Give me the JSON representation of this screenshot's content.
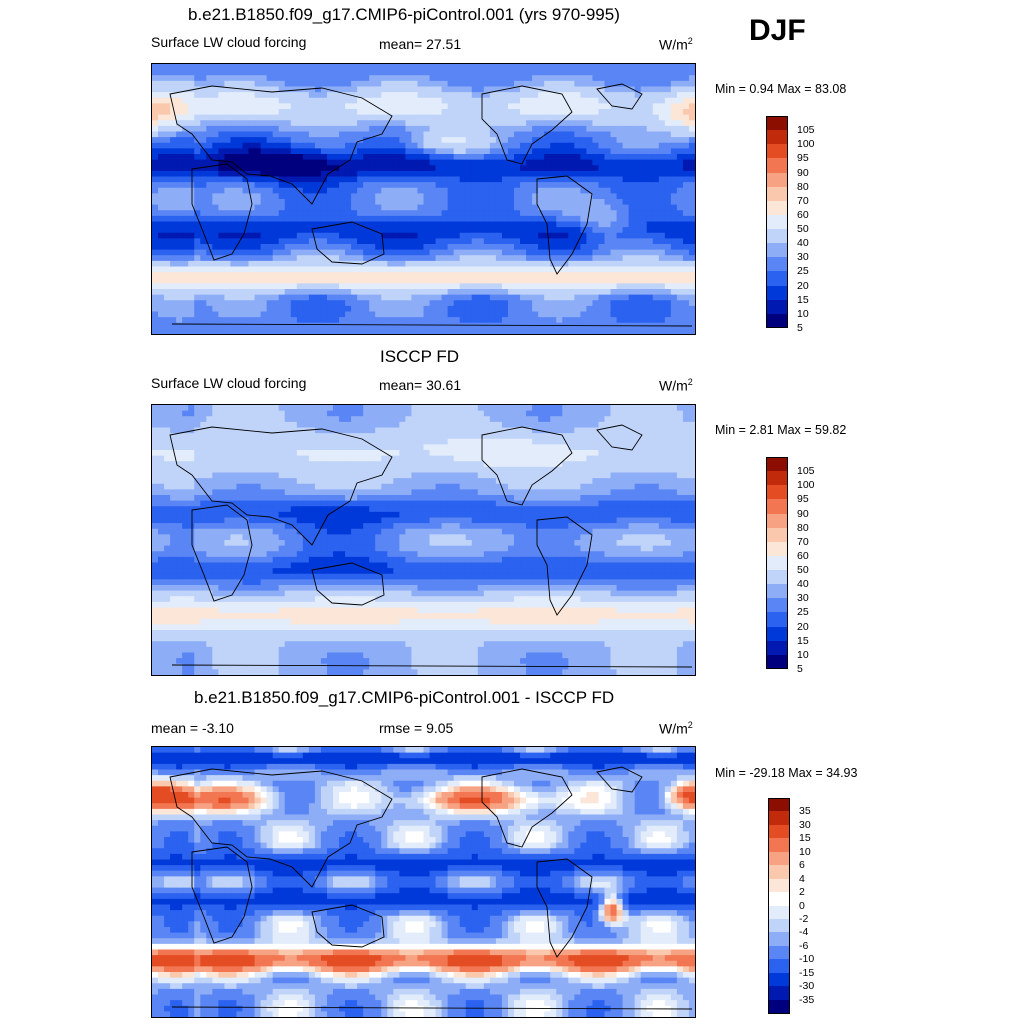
{
  "season": "DJF",
  "colors": {
    "mean_scale": [
      "#00007f",
      "#0019b0",
      "#0039d9",
      "#2b62f0",
      "#5a86f5",
      "#8eadf7",
      "#c0d4f9",
      "#e2ecfb",
      "#fbe6d8",
      "#f9c8ad",
      "#f6a283",
      "#f27652",
      "#e44c24",
      "#c22a0c",
      "#8c0e00"
    ],
    "diff_scale": [
      "#00007f",
      "#0019b0",
      "#0039d9",
      "#2b62f0",
      "#5a86f5",
      "#8eadf7",
      "#c0d4f9",
      "#e2ecfb",
      "#ffffff",
      "#fbe6d8",
      "#f9c8ad",
      "#f6a283",
      "#f27652",
      "#e44c24",
      "#c22a0c",
      "#8c0e00"
    ]
  },
  "panels": [
    {
      "title": "b.e21.B1850.f09_g17.CMIP6-piControl.001 (yrs 970-995)",
      "left_label": "Surface LW cloud forcing",
      "center_label": "mean=  27.51",
      "units_base": "W/m",
      "units_exp": "2",
      "minmax": "Min =   0.94 Max =  83.08",
      "cbar_ticks": [
        "105",
        "100",
        "95",
        "90",
        "80",
        "70",
        "60",
        "50",
        "40",
        "30",
        "25",
        "20",
        "15",
        "10",
        "5"
      ]
    },
    {
      "title": "ISCCP FD",
      "left_label": "Surface LW cloud forcing",
      "center_label": "mean=  30.61",
      "units_base": "W/m",
      "units_exp": "2",
      "minmax": "Min =   2.81 Max =  59.82",
      "cbar_ticks": [
        "105",
        "100",
        "95",
        "90",
        "80",
        "70",
        "60",
        "50",
        "40",
        "30",
        "25",
        "20",
        "15",
        "10",
        "5"
      ]
    },
    {
      "title": "b.e21.B1850.f09_g17.CMIP6-piControl.001 - ISCCP FD",
      "left_label": "mean =  -3.10",
      "center_label": "rmse =   9.05",
      "units_base": "W/m",
      "units_exp": "2",
      "minmax": "Min = -29.18 Max =  34.93",
      "cbar_ticks": [
        "35",
        "30",
        "15",
        "10",
        "6",
        "4",
        "2",
        "0",
        "-2",
        "-4",
        "-6",
        "-10",
        "-15",
        "-30",
        "-35"
      ]
    }
  ],
  "chart_data": [
    {
      "type": "heatmap",
      "title": "b.e21.B1850.f09_g17.CMIP6-piControl.001 (yrs 970-995)",
      "variable": "Surface LW cloud forcing",
      "units": "W/m2",
      "mean": 27.51,
      "min": 0.94,
      "max": 83.08,
      "contour_levels": [
        5,
        10,
        15,
        20,
        25,
        30,
        40,
        50,
        60,
        70,
        80,
        90,
        95,
        100,
        105
      ]
    },
    {
      "type": "heatmap",
      "title": "ISCCP FD",
      "variable": "Surface LW cloud forcing",
      "units": "W/m2",
      "mean": 30.61,
      "min": 2.81,
      "max": 59.82,
      "contour_levels": [
        5,
        10,
        15,
        20,
        25,
        30,
        40,
        50,
        60,
        70,
        80,
        90,
        95,
        100,
        105
      ]
    },
    {
      "type": "heatmap",
      "title": "b.e21.B1850.f09_g17.CMIP6-piControl.001 - ISCCP FD",
      "units": "W/m2",
      "mean": -3.1,
      "rmse": 9.05,
      "min": -29.18,
      "max": 34.93,
      "contour_levels": [
        -35,
        -30,
        -15,
        -10,
        -6,
        -4,
        -2,
        0,
        2,
        4,
        6,
        10,
        15,
        30,
        35
      ]
    }
  ]
}
